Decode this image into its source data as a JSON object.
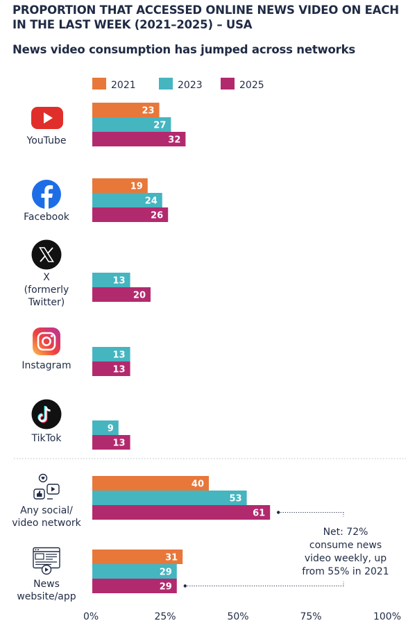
{
  "title": "PROPORTION THAT ACCESSED ONLINE NEWS VIDEO ON EACH IN THE LAST WEEK (2021–2025) – USA",
  "subtitle": "News video consumption has jumped across networks",
  "colors": {
    "2021": "#e8773a",
    "2023": "#45b5c0",
    "2025": "#b22a6e",
    "text": "#1f2a44"
  },
  "icons": {
    "youtube": "youtube-logo-icon",
    "facebook": "facebook-logo-icon",
    "x": "x-logo-icon",
    "instagram": "instagram-logo-icon",
    "tiktok": "tiktok-logo-icon",
    "social": "social-video-network-icon",
    "news": "news-website-app-icon"
  },
  "platform_labels": {
    "youtube": "YouTube",
    "facebook": "Facebook",
    "x": [
      "X",
      "(formerly",
      "Twitter)"
    ],
    "instagram": "Instagram",
    "tiktok": "TikTok",
    "social": [
      "Any social/",
      "video network"
    ],
    "news": [
      "News",
      "website/app"
    ]
  },
  "annotation": {
    "net": [
      "Net: 72%",
      "consume news",
      "video weekly, up",
      "from 55% in 2021"
    ]
  },
  "chart_data": {
    "type": "bar",
    "orientation": "horizontal",
    "title": "PROPORTION THAT ACCESSED ONLINE NEWS VIDEO ON EACH IN THE LAST WEEK (2021–2025) – USA",
    "subtitle": "News video consumption has jumped across networks",
    "categories": [
      "YouTube",
      "Facebook",
      "X (formerly Twitter)",
      "Instagram",
      "TikTok",
      "Any social/video network",
      "News website/app"
    ],
    "series": [
      {
        "name": "2021",
        "values": [
          23,
          19,
          null,
          null,
          null,
          40,
          31
        ]
      },
      {
        "name": "2023",
        "values": [
          27,
          24,
          13,
          13,
          9,
          53,
          29
        ]
      },
      {
        "name": "2025",
        "values": [
          32,
          26,
          20,
          13,
          13,
          61,
          29
        ]
      }
    ],
    "xlim": [
      0,
      100
    ],
    "x_ticks": [
      "0%",
      "25%",
      "50%",
      "75%",
      "100%"
    ],
    "legend": [
      "2021",
      "2023",
      "2025"
    ],
    "legend_position": "top",
    "grid": false
  }
}
